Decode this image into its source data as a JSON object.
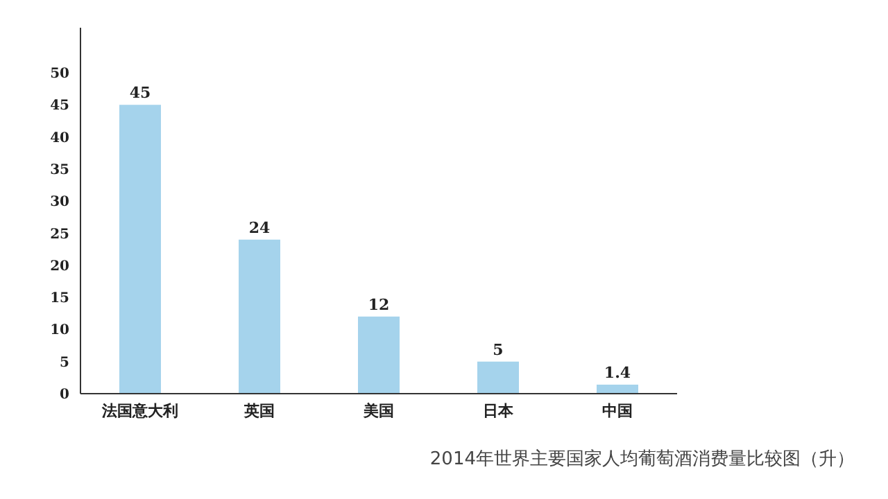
{
  "chart_data": {
    "type": "bar",
    "categories": [
      "法国意大利",
      "英国",
      "美国",
      "日本",
      "中国"
    ],
    "values": [
      45,
      24,
      12,
      5,
      1.4
    ],
    "color": "#a5d3ec",
    "ylim": [
      0,
      57
    ],
    "yticks": [
      0,
      5,
      10,
      15,
      20,
      25,
      30,
      35,
      40,
      45,
      50
    ],
    "grid": false,
    "legend": false,
    "data_labels": true,
    "annotations": [
      "2014年世界主要国家人均葡萄酒消费量比较图（升）"
    ]
  }
}
